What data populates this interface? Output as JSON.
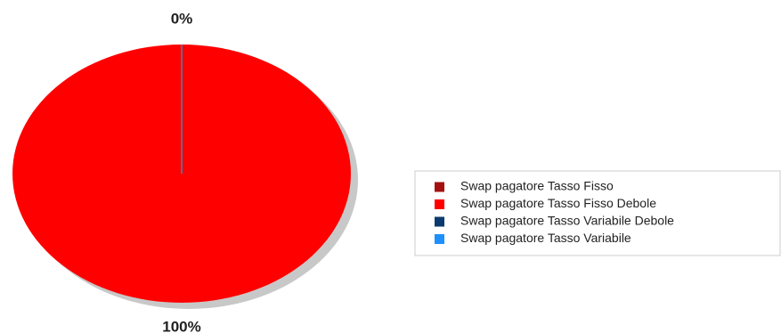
{
  "chart_data": {
    "type": "pie",
    "categories": [
      "Swap pagatore Tasso Fisso",
      "Swap pagatore Tasso Fisso Debole",
      "Swap pagatore Tasso Variabile Debole",
      "Swap pagatore Tasso Variabile"
    ],
    "values": [
      0,
      100,
      0,
      0
    ],
    "value_labels": [
      "0%",
      "100%",
      null,
      null
    ],
    "colors": [
      "#a50f0f",
      "#ff0000",
      "#0b3a6e",
      "#1e8fff"
    ]
  }
}
